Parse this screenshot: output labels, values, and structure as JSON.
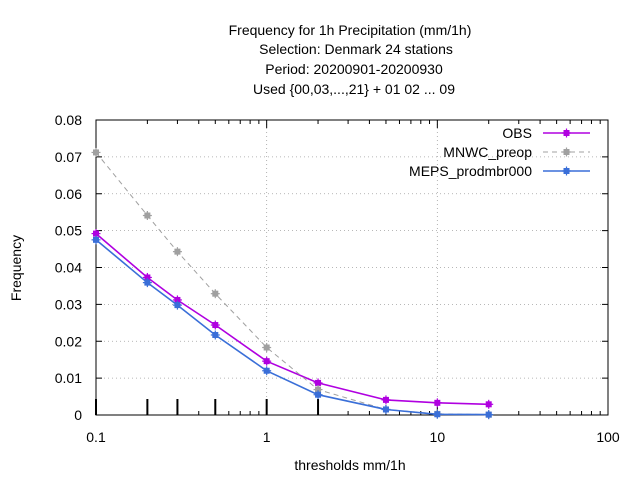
{
  "chart_data": {
    "type": "line",
    "title_lines": [
      "Frequency  for 1h Precipitation (mm/1h)",
      "Selection: Denmark     24 stations",
      "Period: 20200901-20200930",
      "Used {00,03,...,21} + 01 02 ... 09"
    ],
    "xlabel": "thresholds mm/1h",
    "ylabel": "Frequency",
    "x_scale": "log",
    "xlim": [
      0.1,
      100
    ],
    "ylim": [
      0,
      0.08
    ],
    "x_ticks": [
      0.1,
      1,
      10,
      100
    ],
    "x_tick_labels": [
      "0.1",
      "1",
      "10",
      "100"
    ],
    "y_ticks": [
      0,
      0.01,
      0.02,
      0.03,
      0.04,
      0.05,
      0.06,
      0.07,
      0.08
    ],
    "y_tick_labels": [
      "0",
      "0.01",
      "0.02",
      "0.03",
      "0.04",
      "0.05",
      "0.06",
      "0.07",
      "0.08"
    ],
    "grid": true,
    "legend_position": "top-right",
    "threshold_markers": [
      0.1,
      0.2,
      0.3,
      0.5,
      1,
      2
    ],
    "series": [
      {
        "name": "OBS",
        "color": "#b000e0",
        "dash": "solid",
        "x": [
          0.1,
          0.2,
          0.3,
          0.5,
          1,
          2,
          5,
          10,
          20
        ],
        "y": [
          0.0492,
          0.0373,
          0.0312,
          0.0244,
          0.0146,
          0.0087,
          0.0041,
          0.0033,
          0.0029
        ]
      },
      {
        "name": "MNWC_preop",
        "color": "#a0a0a0",
        "dash": "dashed",
        "x": [
          0.1,
          0.2,
          0.3,
          0.5,
          1,
          2,
          5,
          10,
          20
        ],
        "y": [
          0.0712,
          0.0541,
          0.0443,
          0.0329,
          0.0183,
          0.0069,
          0.0015,
          0.0003,
          0.0001
        ]
      },
      {
        "name": "MEPS_prodmbr000",
        "color": "#3a6fd8",
        "dash": "solid",
        "x": [
          0.1,
          0.2,
          0.3,
          0.5,
          1,
          2,
          5,
          10,
          20
        ],
        "y": [
          0.0475,
          0.0359,
          0.0298,
          0.0217,
          0.012,
          0.0055,
          0.0015,
          0.0002,
          0.0001
        ]
      }
    ]
  }
}
